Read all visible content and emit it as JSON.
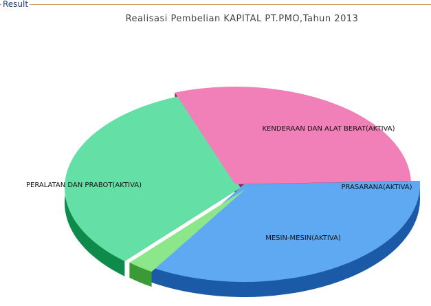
{
  "panel": {
    "legend": "Result"
  },
  "chart_data": {
    "type": "pie",
    "title": "Realisasi Pembelian KAPITAL PT.PMO,Tahun 2013",
    "slices": [
      {
        "label": "KENDERAAN DAN ALAT BERAT(AKTIVA)",
        "value": 34.5,
        "color": "#5fa8f2",
        "side_color": "#1a5aa6"
      },
      {
        "label": "PRASARANA(AKTIVA)",
        "value": 2.5,
        "color": "#8ce68a",
        "side_color": "#3a9a36"
      },
      {
        "label": "MESIN-MESIN(AKTIVA)",
        "value": 33.0,
        "color": "#64e0a6",
        "side_color": "#0e8a4a"
      },
      {
        "label": "PERALATAN DAN PRABOT(AKTIVA)",
        "value": 30.0,
        "color": "#f280b8",
        "side_color": "#9b2560"
      }
    ]
  }
}
